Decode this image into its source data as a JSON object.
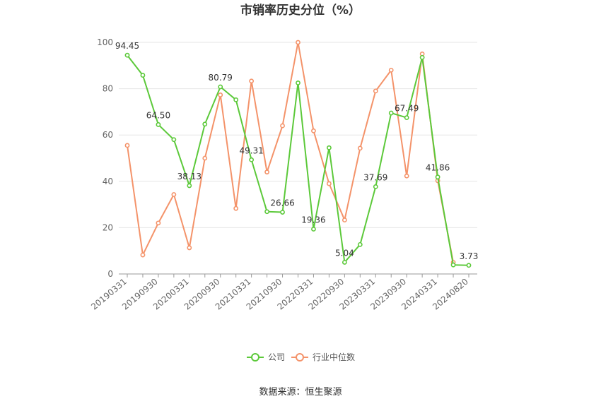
{
  "chart_data": {
    "type": "line",
    "title": "市销率历史分位（%）",
    "source": "数据来源：恒生聚源",
    "ylim": [
      0,
      100
    ],
    "yticks": [
      0,
      20,
      40,
      60,
      80,
      100
    ],
    "xtick_labels": [
      "20190331",
      "20190930",
      "20200331",
      "20200930",
      "20210331",
      "20210930",
      "20220331",
      "20220930",
      "20230331",
      "20230930",
      "20240331",
      "20240820"
    ],
    "categories": [
      "20190331",
      "20190630",
      "20190930",
      "20191231",
      "20200331",
      "20200630",
      "20200930",
      "20201231",
      "20210331",
      "20210630",
      "20210930",
      "20211231",
      "20220331",
      "20220630",
      "20220930",
      "20221231",
      "20230331",
      "20230630",
      "20230930",
      "20231231",
      "20240331",
      "20240630",
      "20240820"
    ],
    "grid": true,
    "legend_position": "bottom",
    "series": [
      {
        "name": "公司",
        "color": "#5cc93a",
        "values": [
          94.45,
          85.8,
          64.5,
          58.0,
          38.13,
          64.7,
          80.79,
          75.2,
          49.31,
          26.9,
          26.66,
          82.5,
          19.36,
          54.5,
          5.04,
          12.7,
          37.69,
          69.5,
          67.49,
          93.5,
          41.86,
          3.9,
          3.73
        ],
        "labels": {
          "0": "94.45",
          "2": "64.50",
          "4": "38.13",
          "6": "80.79",
          "8": "49.31",
          "10": "26.66",
          "12": "19.36",
          "14": "5.04",
          "16": "37.69",
          "18": "67.49",
          "20": "41.86",
          "22": "3.73"
        }
      },
      {
        "name": "行业中位数",
        "color": "#f4936a",
        "values": [
          55.5,
          8.2,
          22.0,
          34.3,
          11.3,
          50.0,
          77.3,
          28.3,
          83.3,
          44.0,
          64.0,
          100.0,
          61.8,
          39.0,
          23.3,
          54.3,
          79.0,
          88.0,
          42.3,
          95.0,
          40.3,
          5.0,
          null
        ]
      }
    ]
  }
}
